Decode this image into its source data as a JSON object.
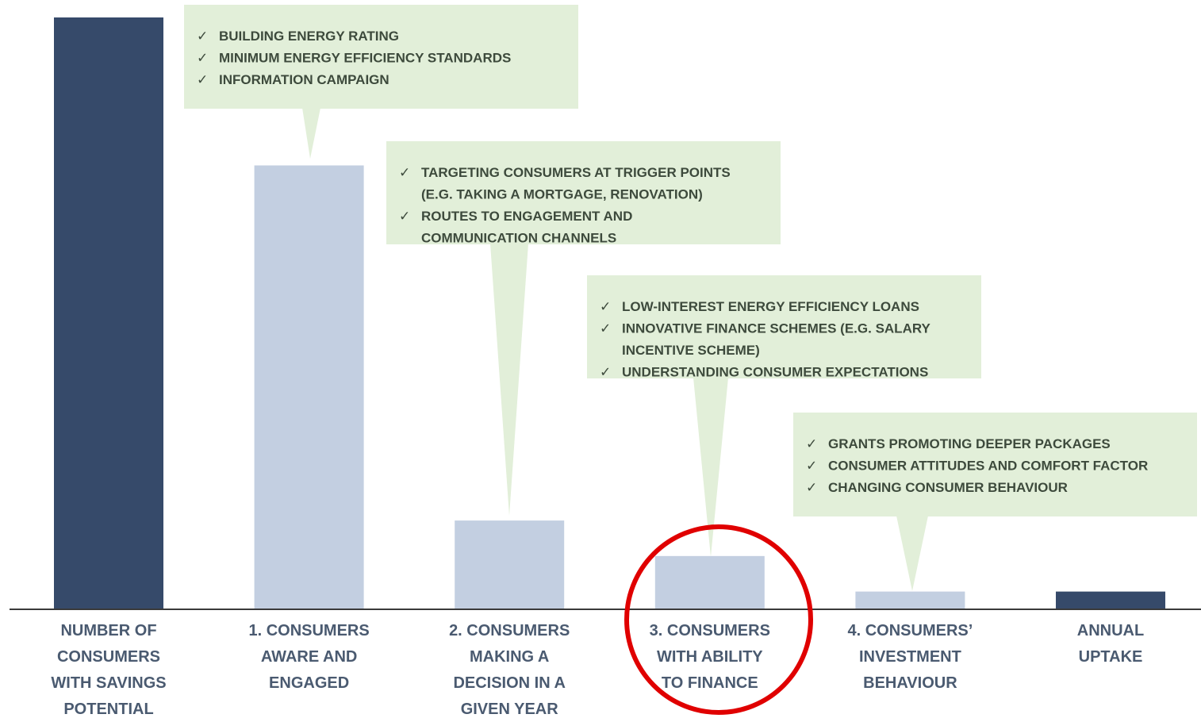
{
  "chart_data": {
    "type": "bar",
    "categories": [
      "NUMBER OF\nCONSUMERS\nWITH SAVINGS\nPOTENTIAL",
      "1. CONSUMERS\nAWARE AND\nENGAGED",
      "2. CONSUMERS\nMAKING A\nDECISION IN A\nGIVEN YEAR",
      "3. CONSUMERS\nWITH ABILITY\nTO FINANCE",
      "4. CONSUMERS’\nINVESTMENT\nBEHAVIOUR",
      "ANNUAL\nUPTAKE"
    ],
    "values": [
      100,
      75,
      15,
      9,
      3,
      3
    ],
    "colors": [
      "#364a6a",
      "#c3cfe1",
      "#c3cfe1",
      "#c3cfe1",
      "#c3cfe1",
      "#364a6a"
    ],
    "ylim": [
      0,
      100
    ],
    "callouts": [
      {
        "bullet": "✓",
        "items": [
          [
            "BUILDING ENERGY RATING"
          ],
          [
            "MINIMUM ENERGY EFFICIENCY STANDARDS"
          ],
          [
            "INFORMATION CAMPAIGN"
          ]
        ]
      },
      {
        "bullet": "✓",
        "items": [
          [
            "TARGETING CONSUMERS AT TRIGGER POINTS",
            "(E.G. TAKING A MORTGAGE, RENOVATION)"
          ],
          [
            "ROUTES TO ENGAGEMENT AND",
            "COMMUNICATION CHANNELS"
          ]
        ]
      },
      {
        "bullet": "✓",
        "items": [
          [
            "LOW-INTEREST ENERGY EFFICIENCY LOANS"
          ],
          [
            "INNOVATIVE FINANCE SCHEMES (E.G. SALARY",
            "INCENTIVE SCHEME)"
          ],
          [
            "UNDERSTANDING CONSUMER EXPECTATIONS"
          ]
        ]
      },
      {
        "bullet": "✓",
        "items": [
          [
            "GRANTS PROMOTING DEEPER PACKAGES"
          ],
          [
            "CONSUMER ATTITUDES AND COMFORT FACTOR"
          ],
          [
            "CHANGING CONSUMER BEHAVIOUR"
          ]
        ]
      }
    ]
  }
}
